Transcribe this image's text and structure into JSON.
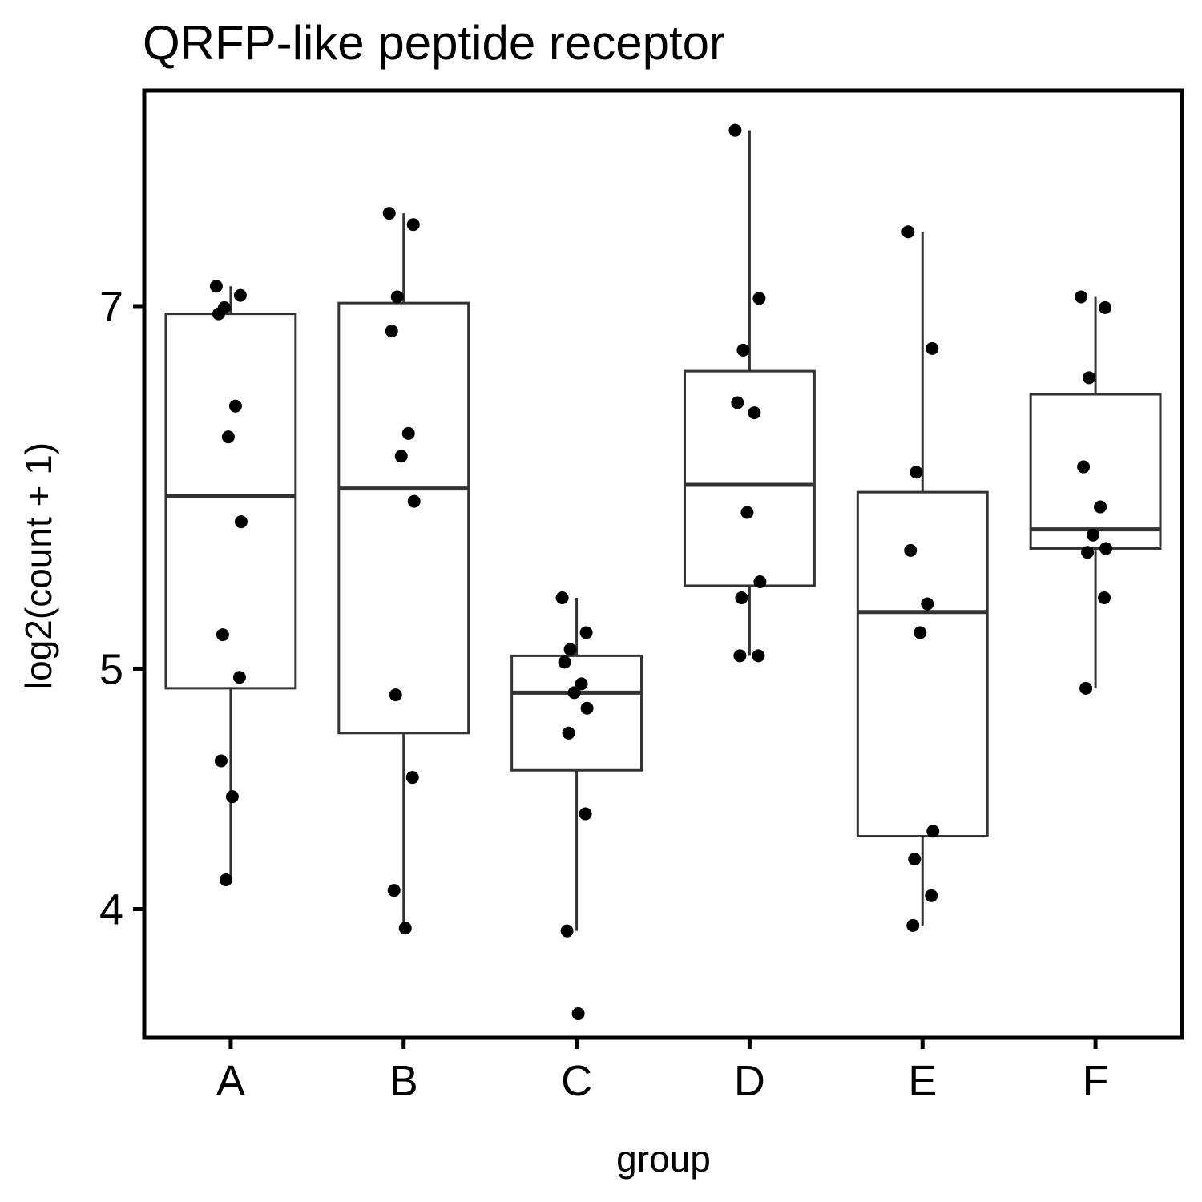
{
  "chart_data": {
    "type": "box",
    "title": "QRFP-like peptide receptor",
    "xlabel": "group",
    "ylabel": "log2(count + 1)",
    "y_scale": "log2",
    "ylim": [
      3.55,
      8.55
    ],
    "y_ticks": [
      4,
      5,
      7
    ],
    "y_tick_labels": [
      "4",
      "5",
      "7"
    ],
    "categories": [
      "A",
      "B",
      "C",
      "D",
      "E",
      "F"
    ],
    "grid": false,
    "legend": "none",
    "colors": {
      "box_stroke": "#333333",
      "point": "#000000",
      "frame": "#000000"
    },
    "boxes": [
      {
        "group": "A",
        "whisker_low": 4.11,
        "q1": 4.91,
        "median": 5.87,
        "q3": 6.95,
        "whisker_high": 7.13
      },
      {
        "group": "B",
        "whisker_low": 3.93,
        "q1": 4.71,
        "median": 5.91,
        "q3": 7.02,
        "whisker_high": 7.63
      },
      {
        "group": "C",
        "whisker_low": 3.92,
        "q1": 4.55,
        "median": 4.89,
        "q3": 5.06,
        "whisker_high": 5.34
      },
      {
        "group": "D",
        "whisker_low": 5.06,
        "q1": 5.4,
        "median": 5.93,
        "q3": 6.59,
        "whisker_high": 8.24
      },
      {
        "group": "E",
        "whisker_low": 3.94,
        "q1": 4.28,
        "median": 5.27,
        "q3": 5.89,
        "whisker_high": 7.5
      },
      {
        "group": "F",
        "whisker_low": 4.91,
        "q1": 5.59,
        "median": 5.69,
        "q3": 6.45,
        "whisker_high": 7.06
      }
    ],
    "points": [
      {
        "group": "A",
        "values": [
          7.13,
          7.07,
          6.99,
          6.95,
          6.38,
          6.2,
          5.73,
          5.16,
          4.96,
          4.59,
          4.44,
          4.11
        ]
      },
      {
        "group": "B",
        "values": [
          7.63,
          7.55,
          7.06,
          6.84,
          6.22,
          6.09,
          5.84,
          4.88,
          4.52,
          4.07,
          3.93
        ]
      },
      {
        "group": "C",
        "values": [
          5.34,
          5.17,
          5.09,
          5.03,
          4.93,
          4.89,
          4.82,
          4.71,
          4.37,
          3.92,
          3.63
        ]
      },
      {
        "group": "D",
        "values": [
          8.24,
          7.05,
          6.72,
          6.4,
          6.34,
          5.78,
          5.42,
          5.34,
          5.06,
          5.06
        ]
      },
      {
        "group": "E",
        "values": [
          7.5,
          6.73,
          6.0,
          5.58,
          5.31,
          5.17,
          4.3,
          4.19,
          4.05,
          3.94
        ]
      },
      {
        "group": "F",
        "values": [
          7.06,
          6.99,
          6.55,
          6.03,
          5.81,
          5.66,
          5.59,
          5.57,
          5.34,
          4.91
        ]
      }
    ]
  }
}
